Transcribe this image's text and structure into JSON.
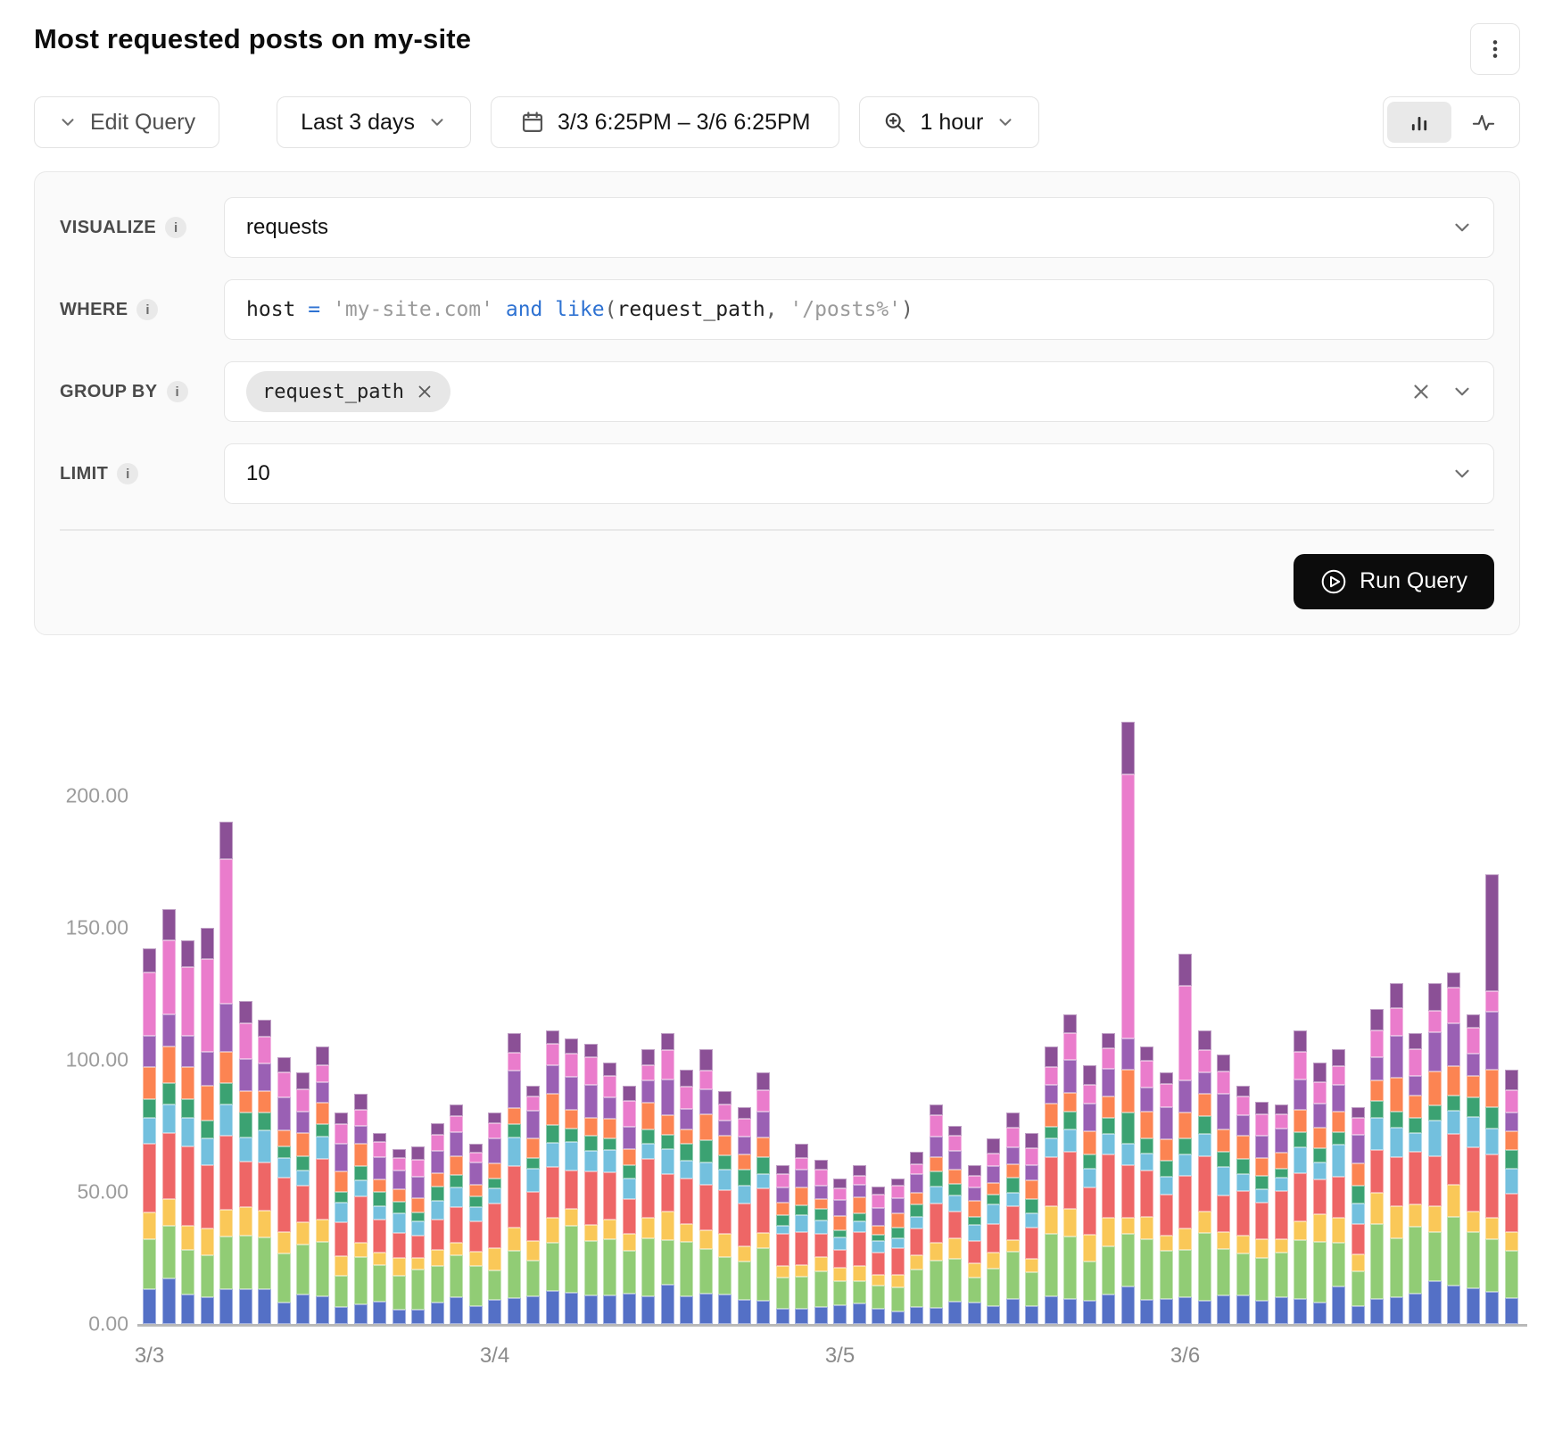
{
  "header": {
    "title": "Most requested posts on my-site"
  },
  "toolbar": {
    "edit_query_label": "Edit Query",
    "time_range_label": "Last 3 days",
    "date_range_label": "3/3 6:25PM – 3/6 6:25PM",
    "interval_label": "1 hour"
  },
  "query": {
    "visualize": {
      "label": "VISUALIZE",
      "value": "requests"
    },
    "where": {
      "label": "WHERE",
      "tokens": [
        {
          "text": "host",
          "style": "ident"
        },
        {
          "text": " ",
          "style": "plain"
        },
        {
          "text": "=",
          "style": "op"
        },
        {
          "text": " ",
          "style": "plain"
        },
        {
          "text": "'my-site.com'",
          "style": "str"
        },
        {
          "text": " ",
          "style": "plain"
        },
        {
          "text": "and",
          "style": "kw"
        },
        {
          "text": " ",
          "style": "plain"
        },
        {
          "text": "like",
          "style": "kw"
        },
        {
          "text": "(",
          "style": "paren"
        },
        {
          "text": "request_path",
          "style": "ident"
        },
        {
          "text": ", ",
          "style": "paren"
        },
        {
          "text": "'/posts%'",
          "style": "str"
        },
        {
          "text": ")",
          "style": "paren"
        }
      ]
    },
    "group_by": {
      "label": "GROUP BY",
      "chips": [
        "request_path"
      ]
    },
    "limit": {
      "label": "LIMIT",
      "value": "10"
    },
    "run_label": "Run Query"
  },
  "chart_data": {
    "type": "bar",
    "stacked": true,
    "title": "",
    "xlabel": "",
    "ylabel": "",
    "x_tick_labels": [
      "3/3",
      "3/4",
      "3/5",
      "3/6"
    ],
    "x_tick_bar_indices": [
      0,
      18,
      36,
      54
    ],
    "y_ticks": [
      {
        "v": 0,
        "label": "0.00"
      },
      {
        "v": 50,
        "label": "50.00"
      },
      {
        "v": 100,
        "label": "100.00"
      },
      {
        "v": 150,
        "label": "150.00"
      },
      {
        "v": 200,
        "label": "200.00"
      }
    ],
    "ylim": [
      0,
      250
    ],
    "grid": false,
    "legend": "none",
    "bucket_interval": "1 hour",
    "series_colors": [
      "#5470c6",
      "#91cc75",
      "#fac858",
      "#ee6666",
      "#73c0de",
      "#3ba272",
      "#fc8452",
      "#9a60b4",
      "#ea7ccc",
      "#8b5096"
    ],
    "totals": [
      142,
      157,
      145,
      150,
      190,
      122,
      115,
      101,
      95,
      105,
      80,
      87,
      72,
      66,
      67,
      76,
      83,
      68,
      80,
      110,
      90,
      111,
      108,
      106,
      99,
      90,
      104,
      110,
      96,
      104,
      88,
      82,
      95,
      60,
      68,
      62,
      55,
      60,
      52,
      55,
      65,
      83,
      75,
      60,
      70,
      80,
      72,
      105,
      117,
      98,
      110,
      228,
      105,
      95,
      140,
      111,
      102,
      90,
      84,
      83,
      111,
      99,
      104,
      82,
      119,
      129,
      110,
      129,
      133,
      117,
      170,
      96
    ],
    "base_fractions": [
      0.1,
      0.19,
      0.08,
      0.17,
      0.08,
      0.06,
      0.08,
      0.1,
      0.08,
      0.06
    ],
    "segment_overrides": {
      "0": [
        13,
        19,
        10,
        26,
        10,
        7,
        12,
        12,
        24,
        9
      ],
      "1": [
        17,
        20,
        10,
        25,
        11,
        8,
        14,
        12,
        28,
        12
      ],
      "2": [
        11,
        17,
        9,
        30,
        11,
        7,
        12,
        12,
        26,
        10
      ],
      "3": [
        10,
        16,
        10,
        24,
        10,
        7,
        13,
        13,
        35,
        12
      ],
      "4": [
        13,
        20,
        10,
        28,
        12,
        8,
        12,
        18,
        55,
        14
      ],
      "51": [
        14,
        20,
        6,
        20,
        8,
        12,
        16,
        12,
        100,
        20
      ],
      "54": [
        10,
        18,
        8,
        20,
        8,
        6,
        10,
        12,
        36,
        12
      ],
      "70": [
        12,
        20,
        8,
        24,
        10,
        8,
        14,
        22,
        8,
        44
      ]
    }
  }
}
